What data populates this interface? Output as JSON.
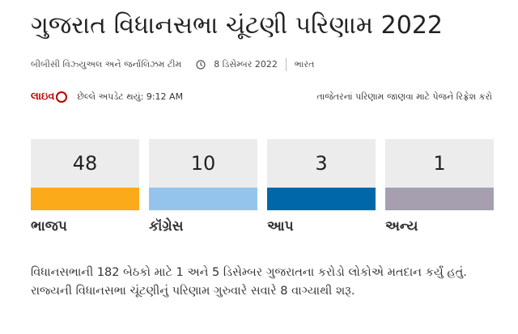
{
  "header": {
    "title": "ગુજરાત વિધાનસભા ચૂંટણી પરિણામ 2022",
    "byline": "બીબીસી વિઝ્યુઅલ અને જર્નાલિઝમ ટીમ",
    "date": "8 ડિસેમ્બર 2022",
    "location": "ભારત"
  },
  "status": {
    "live": "લાઇવ",
    "updated": "છેલ્લે અપડેટ થયું: 9:12 AM",
    "refresh_note": "તાજેતરનાં પરિણામ જાણવા માટે પેજને રિફ્રેશ કરો"
  },
  "parties": [
    {
      "seats": 48,
      "name": "ભાજપ",
      "color": "#fbaa19"
    },
    {
      "seats": 10,
      "name": "કૉંગ્રેસ",
      "color": "#94c4ec"
    },
    {
      "seats": 3,
      "name": "આપ",
      "color": "#0068a8"
    },
    {
      "seats": 1,
      "name": "અન્ય",
      "color": "#a59faf"
    }
  ],
  "summary": "વિધાનસભાની 182 બેઠકો માટે 1 અને 5 ડિસેમ્બર ગુજરાતના કરોડો લોકોએ મતદાન કર્યું હતું. રાજ્યની વિધાનસભા ચૂંટણીનું પરિણામ ગુરુવારે સવારે 8 વાગ્યાથી શરૂ."
}
